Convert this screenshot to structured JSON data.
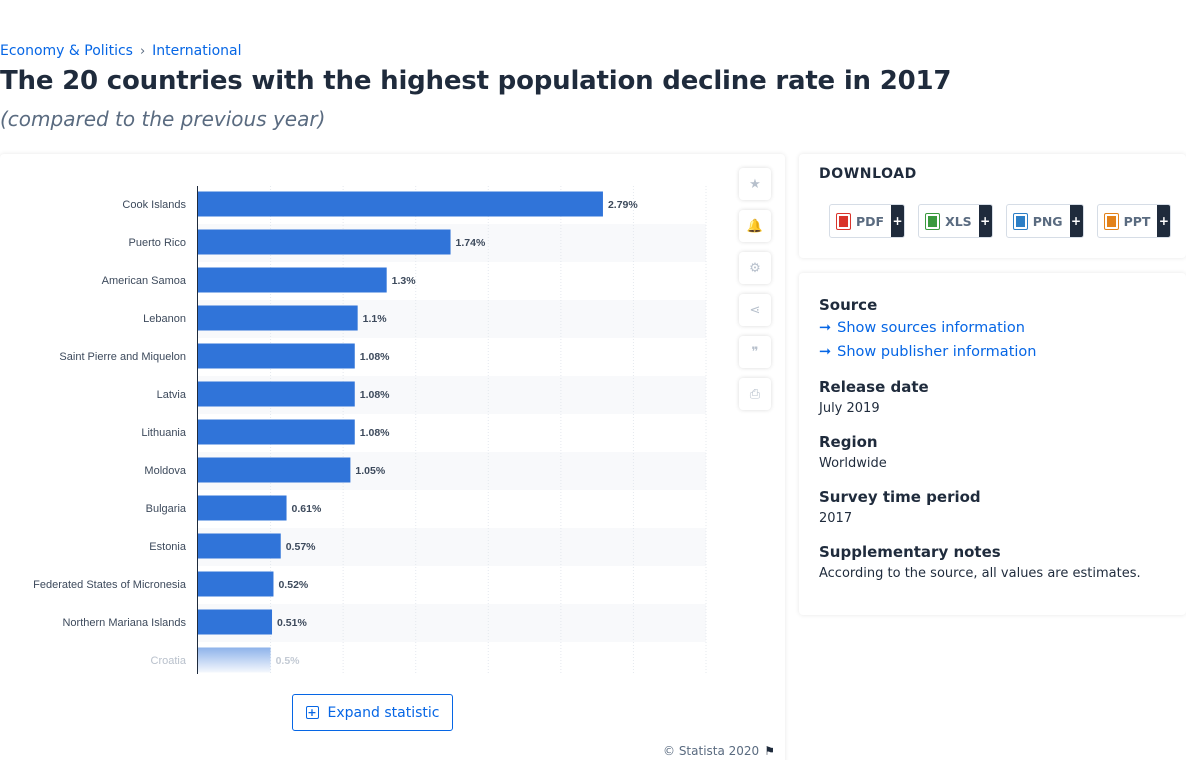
{
  "breadcrumb": {
    "items": [
      "Economy & Politics",
      "International"
    ],
    "separator": "›"
  },
  "title": "The 20 countries with the highest population decline rate in 2017",
  "subtitle": "(compared to the previous year)",
  "chart_data": {
    "type": "bar",
    "orientation": "horizontal",
    "categories": [
      "Cook Islands",
      "Puerto Rico",
      "American Samoa",
      "Lebanon",
      "Saint Pierre and Miquelon",
      "Latvia",
      "Lithuania",
      "Moldova",
      "Bulgaria",
      "Estonia",
      "Federated States of Micronesia",
      "Northern Mariana Islands",
      "Croatia"
    ],
    "values": [
      2.79,
      1.74,
      1.3,
      1.1,
      1.08,
      1.08,
      1.08,
      1.05,
      0.61,
      0.57,
      0.52,
      0.51,
      0.5
    ],
    "data_labels": [
      "2.79%",
      "1.74%",
      "1.3%",
      "1.1%",
      "1.08%",
      "1.08%",
      "1.08%",
      "1.05%",
      "0.61%",
      "0.57%",
      "0.52%",
      "0.51%",
      "0.5%"
    ],
    "xlim": [
      0,
      3.5
    ],
    "grid": true,
    "bar_color": "#3074d9",
    "faded_last_row": true
  },
  "tools": [
    {
      "name": "favorite-star-icon",
      "glyph": "★"
    },
    {
      "name": "notification-bell-icon",
      "glyph": "🔔"
    },
    {
      "name": "settings-gear-icon",
      "glyph": "⚙"
    },
    {
      "name": "share-icon",
      "glyph": "⋖"
    },
    {
      "name": "citation-quote-icon",
      "glyph": "❞"
    },
    {
      "name": "print-icon",
      "glyph": "⎙"
    }
  ],
  "expand_label": "Expand statistic",
  "copyright": "© Statista 2020",
  "download": {
    "heading": "DOWNLOAD",
    "buttons": [
      {
        "label": "PDF",
        "icon": "pdf-file-icon",
        "color": "#d9342b"
      },
      {
        "label": "XLS",
        "icon": "xls-file-icon",
        "color": "#3a9a3e"
      },
      {
        "label": "PNG",
        "icon": "png-file-icon",
        "color": "#2d7fc6"
      },
      {
        "label": "PPT",
        "icon": "ppt-file-icon",
        "color": "#e3821a"
      }
    ],
    "plus": "+"
  },
  "meta": {
    "source_label": "Source",
    "show_sources": "Show sources information",
    "show_publisher": "Show publisher information",
    "release_label": "Release date",
    "release_value": "July 2019",
    "region_label": "Region",
    "region_value": "Worldwide",
    "survey_label": "Survey time period",
    "survey_value": "2017",
    "notes_label": "Supplementary notes",
    "notes_value": "According to the source, all values are estimates."
  },
  "colors": {
    "accent": "#0666e5",
    "text_dark": "#1f2b3c",
    "text_muted": "#5a6b80"
  }
}
